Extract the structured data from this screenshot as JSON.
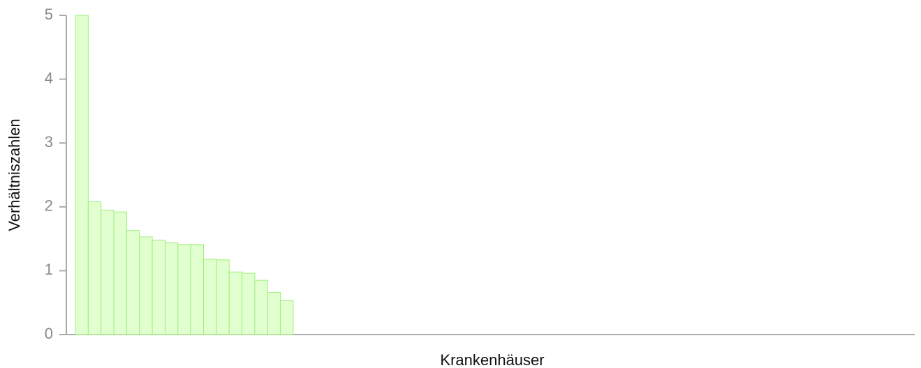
{
  "chart_data": {
    "type": "bar",
    "x_label": "Krankenhäuser",
    "y_label": "Verhältniszahlen",
    "categories": [
      null,
      null,
      null,
      null,
      null,
      null,
      null,
      null,
      null,
      null,
      null,
      null,
      null,
      null,
      null,
      null,
      null
    ],
    "values": [
      5,
      2.08,
      1.95,
      1.92,
      1.63,
      1.53,
      1.48,
      1.44,
      1.41,
      1.41,
      1.18,
      1.17,
      0.98,
      0.96,
      0.85,
      0.66,
      0.53
    ],
    "color": "#e2ffcf",
    "edge_color": "#9def7c",
    "ylim": [
      0,
      5
    ],
    "yticks": [
      0,
      1,
      2,
      3,
      4,
      5
    ],
    "grid": false
  }
}
